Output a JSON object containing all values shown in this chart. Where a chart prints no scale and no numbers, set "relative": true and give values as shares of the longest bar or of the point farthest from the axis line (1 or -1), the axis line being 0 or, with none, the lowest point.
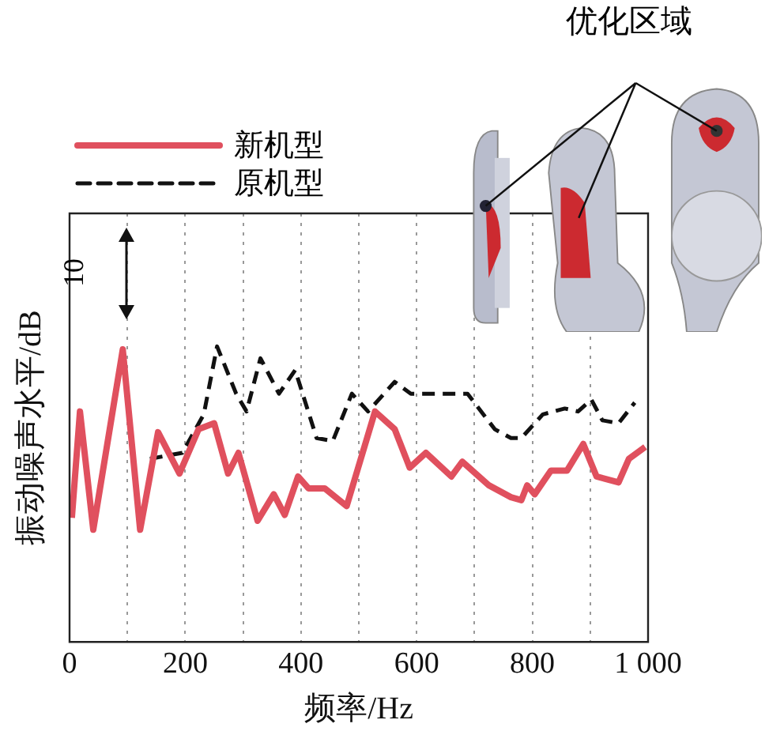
{
  "chart_data": {
    "type": "line",
    "relative": true,
    "xlabel": "频率/Hz",
    "ylabel": "振动噪声水平/dB",
    "xlim": [
      0,
      1000
    ],
    "xticks": [
      0,
      {
        "value": 100,
        "label": null
      },
      200,
      {
        "value": 300,
        "label": null
      },
      400,
      {
        "value": 500,
        "label": null
      },
      600,
      {
        "value": 700,
        "label": null
      },
      800,
      {
        "value": 900,
        "label": null
      },
      {
        "value": 1000,
        "label": "1 000"
      }
    ],
    "grid": "x",
    "legend": "top left",
    "line_style": "solid",
    "marker": "none",
    "annotations": [
      "10",
      "优化区域"
    ],
    "series": [
      {
        "name": "新机型",
        "color": "#e0505e",
        "x": [
          4,
          18,
          41,
          92,
          122,
          153,
          190,
          223,
          250,
          274,
          292,
          325,
          353,
          372,
          395,
          413,
          441,
          479,
          528,
          562,
          588,
          616,
          660,
          679,
          725,
          763,
          781,
          791,
          804,
          832,
          860,
          888,
          911,
          949,
          967,
          995
        ],
        "values": [
          0.42,
          0.78,
          0.38,
          0.99,
          0.38,
          0.71,
          0.57,
          0.72,
          0.74,
          0.57,
          0.64,
          0.41,
          0.5,
          0.43,
          0.56,
          0.52,
          0.52,
          0.46,
          0.78,
          0.72,
          0.59,
          0.64,
          0.56,
          0.61,
          0.53,
          0.49,
          0.48,
          0.53,
          0.5,
          0.58,
          0.58,
          0.67,
          0.56,
          0.54,
          0.62,
          0.66
        ]
      },
      {
        "name": "原机型",
        "color": "#111111",
        "line_style": "dashed",
        "x": [
          139,
          195,
          232,
          255,
          288,
          306,
          330,
          362,
          390,
          427,
          455,
          488,
          516,
          562,
          590,
          642,
          688,
          735,
          763,
          781,
          818,
          856,
          879,
          902,
          921,
          949,
          977
        ],
        "values": [
          0.62,
          0.64,
          0.77,
          1,
          0.84,
          0.78,
          0.96,
          0.84,
          0.92,
          0.69,
          0.68,
          0.84,
          0.78,
          0.88,
          0.84,
          0.84,
          0.84,
          0.72,
          0.69,
          0.69,
          0.77,
          0.79,
          0.78,
          0.82,
          0.75,
          0.74,
          0.81
        ]
      }
    ]
  }
}
